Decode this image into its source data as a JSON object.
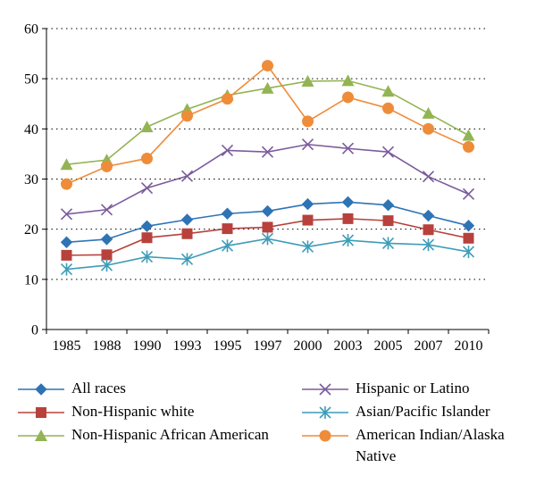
{
  "chart_data": {
    "type": "line",
    "categories": [
      "1985",
      "1988",
      "1990",
      "1993",
      "1995",
      "1997",
      "2000",
      "2003",
      "2005",
      "2007",
      "2010"
    ],
    "ylim": [
      0,
      60
    ],
    "yticks": [
      "0",
      "10",
      "20",
      "30",
      "40",
      "50",
      "60"
    ],
    "grid": "horizontal-dotted",
    "legend_position": "bottom",
    "series": [
      {
        "name": "All races",
        "marker": "diamond",
        "color": "#2E74B5",
        "values": [
          17.4,
          18.0,
          20.6,
          21.9,
          23.1,
          23.6,
          25.0,
          25.4,
          24.8,
          22.7,
          20.7
        ]
      },
      {
        "name": "Non-Hispanic white",
        "marker": "square",
        "color": "#B8413C",
        "values": [
          14.8,
          14.9,
          18.3,
          19.1,
          20.1,
          20.4,
          21.8,
          22.1,
          21.7,
          19.9,
          18.2
        ]
      },
      {
        "name": "Non-Hispanic African American",
        "marker": "triangle",
        "color": "#93B453",
        "values": [
          32.9,
          33.8,
          40.4,
          43.9,
          46.7,
          48.1,
          49.5,
          49.6,
          47.5,
          43.1,
          38.7
        ]
      },
      {
        "name": "Hispanic or Latino",
        "marker": "x",
        "color": "#7B5B9C",
        "values": [
          23.0,
          23.9,
          28.2,
          30.6,
          35.7,
          35.4,
          36.9,
          36.1,
          35.4,
          30.5,
          27.0
        ]
      },
      {
        "name": "Asian/Pacific Islander",
        "marker": "star",
        "color": "#3D9CB8",
        "values": [
          12.0,
          12.8,
          14.5,
          14.0,
          16.7,
          18.1,
          16.5,
          17.8,
          17.2,
          16.9,
          15.5
        ]
      },
      {
        "name": "American Indian/Alaska Native",
        "marker": "circle",
        "color": "#EE8C3A",
        "values": [
          29.0,
          32.5,
          34.1,
          42.6,
          46.0,
          52.6,
          41.5,
          46.3,
          44.1,
          40.0,
          36.4
        ]
      }
    ]
  },
  "legend": {
    "items": [
      {
        "label": "All races"
      },
      {
        "label": "Non-Hispanic white"
      },
      {
        "label": "Non-Hispanic African American"
      },
      {
        "label": "Hispanic or Latino"
      },
      {
        "label": "Asian/Pacific Islander"
      },
      {
        "label": "American Indian/Alaska",
        "label2": "Native"
      }
    ]
  }
}
